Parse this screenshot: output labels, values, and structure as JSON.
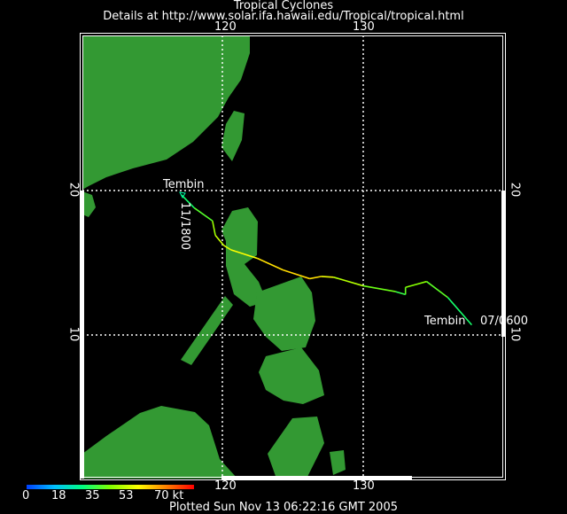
{
  "header": {
    "title": "Tropical Cyclones",
    "subtitle": "Details at http://www.solar.ifa.hawaii.edu/Tropical/tropical.html"
  },
  "map": {
    "lon_range": [
      110,
      140
    ],
    "lat_range": [
      0.5,
      31
    ],
    "lon_labels": [
      "120",
      "130"
    ],
    "lat_labels": [
      "20",
      "10"
    ],
    "land_color": "#339933",
    "grid": true
  },
  "storm": {
    "name": "Tembin",
    "start_label": "07/0600",
    "end_label": "11/1800",
    "track": [
      {
        "lon": 137.7,
        "lat": 10.7,
        "kt": 22
      },
      {
        "lon": 136.0,
        "lat": 12.6,
        "kt": 30
      },
      {
        "lon": 134.5,
        "lat": 13.7,
        "kt": 35
      },
      {
        "lon": 133.0,
        "lat": 13.3,
        "kt": 38
      },
      {
        "lon": 133.0,
        "lat": 12.8,
        "kt": 28
      },
      {
        "lon": 132.3,
        "lat": 13.0,
        "kt": 30
      },
      {
        "lon": 130.0,
        "lat": 13.4,
        "kt": 38
      },
      {
        "lon": 127.9,
        "lat": 14.0,
        "kt": 45
      },
      {
        "lon": 127.0,
        "lat": 14.05,
        "kt": 52
      },
      {
        "lon": 126.2,
        "lat": 13.9,
        "kt": 53
      },
      {
        "lon": 124.3,
        "lat": 14.5,
        "kt": 53
      },
      {
        "lon": 122.5,
        "lat": 15.3,
        "kt": 52
      },
      {
        "lon": 120.6,
        "lat": 15.9,
        "kt": 48
      },
      {
        "lon": 120.1,
        "lat": 16.2,
        "kt": 45
      },
      {
        "lon": 119.5,
        "lat": 16.9,
        "kt": 42
      },
      {
        "lon": 119.3,
        "lat": 17.9,
        "kt": 36
      },
      {
        "lon": 118.0,
        "lat": 18.8,
        "kt": 28
      },
      {
        "lon": 117.1,
        "lat": 19.7,
        "kt": 24
      }
    ]
  },
  "legend": {
    "ticks": [
      "0",
      "18",
      "35",
      "53",
      "70 kt"
    ],
    "range_kt": [
      0,
      70
    ]
  },
  "footer": {
    "plotted": "Plotted Sun Nov 13 06:22:16 GMT 2005"
  }
}
